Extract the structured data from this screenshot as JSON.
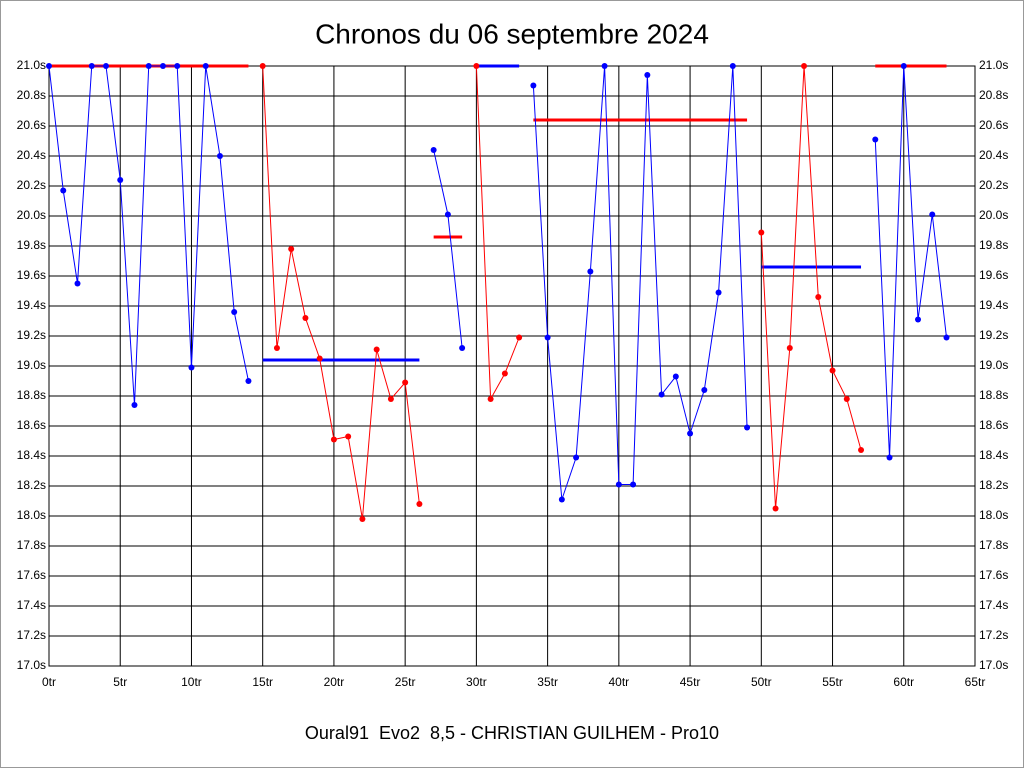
{
  "chart_data": {
    "type": "line",
    "title": "Chronos du 06 septembre 2024",
    "subtitle": "Oural91  Evo2  8,5 - CHRISTIAN GUILHEM - Pro10",
    "x": [
      0,
      1,
      2,
      3,
      4,
      5,
      6,
      7,
      8,
      9,
      10,
      11,
      12,
      13,
      14,
      15,
      16,
      17,
      18,
      19,
      20,
      21,
      22,
      23,
      24,
      25,
      26,
      27,
      28,
      29,
      30,
      31,
      32,
      33,
      34,
      35,
      36,
      37,
      38,
      39,
      40,
      41,
      42,
      43,
      44,
      45,
      46,
      47,
      48,
      49,
      50,
      51,
      52,
      53,
      54,
      55,
      56,
      57,
      58,
      59,
      60,
      61,
      62,
      63
    ],
    "series": [
      {
        "color": "#0000ff",
        "values": [
          21.0,
          20.17,
          19.55,
          21.0,
          21.0,
          20.24,
          18.74,
          21.0,
          21.0,
          21.0,
          18.99,
          21.0,
          20.4,
          19.36,
          18.9,
          null,
          null,
          null,
          null,
          null,
          null,
          null,
          null,
          null,
          null,
          null,
          null,
          20.44,
          20.01,
          19.12,
          null,
          null,
          null,
          null,
          20.87,
          19.19,
          18.11,
          18.39,
          19.63,
          21.0,
          18.21,
          18.21,
          20.94,
          18.81,
          18.93,
          18.55,
          18.84,
          19.49,
          21.0,
          18.59,
          null,
          null,
          null,
          null,
          null,
          null,
          null,
          null,
          20.51,
          18.39,
          21.0,
          19.31,
          20.01,
          19.19
        ]
      },
      {
        "color": "#ff0000",
        "values": [
          null,
          null,
          null,
          null,
          null,
          null,
          null,
          null,
          null,
          null,
          null,
          null,
          null,
          null,
          null,
          21.0,
          19.12,
          19.78,
          19.32,
          19.05,
          18.51,
          18.53,
          17.98,
          19.11,
          18.78,
          18.89,
          18.08,
          null,
          null,
          null,
          21.0,
          18.78,
          18.95,
          19.19,
          null,
          null,
          null,
          null,
          null,
          null,
          null,
          null,
          null,
          null,
          null,
          null,
          null,
          null,
          null,
          null,
          19.89,
          18.05,
          19.12,
          21.0,
          19.46,
          18.97,
          18.78,
          18.44,
          null,
          null,
          null,
          null,
          null,
          null
        ]
      }
    ],
    "averages": [
      {
        "color": "#ff0000",
        "x": [
          0,
          14
        ],
        "value": 21.0
      },
      {
        "color": "#0000ff",
        "x": [
          15,
          26
        ],
        "value": 19.04
      },
      {
        "color": "#ff0000",
        "x": [
          27,
          29
        ],
        "value": 19.86
      },
      {
        "color": "#0000ff",
        "x": [
          30,
          33
        ],
        "value": 21.0
      },
      {
        "color": "#ff0000",
        "x": [
          34,
          49
        ],
        "value": 20.64
      },
      {
        "color": "#0000ff",
        "x": [
          50,
          57
        ],
        "value": 19.66
      },
      {
        "color": "#ff0000",
        "x": [
          58,
          63
        ],
        "value": 21.0
      }
    ],
    "xlim": [
      0,
      65
    ],
    "ylim": [
      17.0,
      21.0
    ],
    "xticks": [
      {
        "value": 0,
        "label": "0tr"
      },
      {
        "value": 5,
        "label": "5tr"
      },
      {
        "value": 10,
        "label": "10tr"
      },
      {
        "value": 15,
        "label": "15tr"
      },
      {
        "value": 20,
        "label": "20tr"
      },
      {
        "value": 25,
        "label": "25tr"
      },
      {
        "value": 30,
        "label": "30tr"
      },
      {
        "value": 35,
        "label": "35tr"
      },
      {
        "value": 40,
        "label": "40tr"
      },
      {
        "value": 45,
        "label": "45tr"
      },
      {
        "value": 50,
        "label": "50tr"
      },
      {
        "value": 55,
        "label": "55tr"
      },
      {
        "value": 60,
        "label": "60tr"
      },
      {
        "value": 65,
        "label": "65tr"
      }
    ],
    "yticks": [
      {
        "value": 17.0,
        "label": "17.0s"
      },
      {
        "value": 17.2,
        "label": "17.2s"
      },
      {
        "value": 17.4,
        "label": "17.4s"
      },
      {
        "value": 17.6,
        "label": "17.6s"
      },
      {
        "value": 17.8,
        "label": "17.8s"
      },
      {
        "value": 18.0,
        "label": "18.0s"
      },
      {
        "value": 18.2,
        "label": "18.2s"
      },
      {
        "value": 18.4,
        "label": "18.4s"
      },
      {
        "value": 18.6,
        "label": "18.6s"
      },
      {
        "value": 18.8,
        "label": "18.8s"
      },
      {
        "value": 19.0,
        "label": "19.0s"
      },
      {
        "value": 19.2,
        "label": "19.2s"
      },
      {
        "value": 19.4,
        "label": "19.4s"
      },
      {
        "value": 19.6,
        "label": "19.6s"
      },
      {
        "value": 19.8,
        "label": "19.8s"
      },
      {
        "value": 20.0,
        "label": "20.0s"
      },
      {
        "value": 20.2,
        "label": "20.2s"
      },
      {
        "value": 20.4,
        "label": "20.4s"
      },
      {
        "value": 20.6,
        "label": "20.6s"
      },
      {
        "value": 20.8,
        "label": "20.8s"
      },
      {
        "value": 21.0,
        "label": "21.0s"
      }
    ],
    "grid": true
  }
}
